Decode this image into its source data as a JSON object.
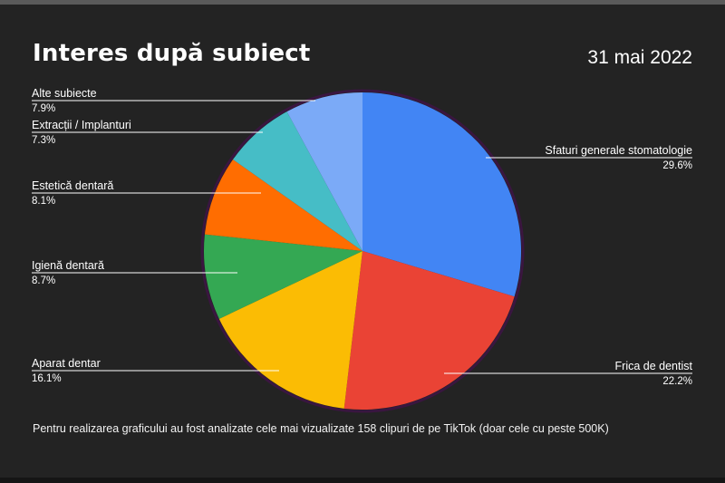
{
  "header": {
    "title": "Interes după subiect",
    "date": "31 mai 2022"
  },
  "footnote": "Pentru realizarea graficului au fost analizate cele mai vizualizate 158 clipuri de pe TikTok (doar cele cu peste 500K)",
  "colors": {
    "background": "#232323",
    "text": "#ffffff"
  },
  "chart_data": {
    "type": "pie",
    "title": "Interes după subiect",
    "start_angle": "12 o'clock",
    "direction": "clockwise",
    "slices": [
      {
        "label": "Sfaturi generale stomatologie",
        "value": 29.6,
        "display": "29.6%",
        "color": "#4285f4"
      },
      {
        "label": "Frica de dentist",
        "value": 22.2,
        "display": "22.2%",
        "color": "#ea4335"
      },
      {
        "label": "Aparat dentar",
        "value": 16.1,
        "display": "16.1%",
        "color": "#fbbc04"
      },
      {
        "label": "Igienă dentară",
        "value": 8.7,
        "display": "8.7%",
        "color": "#34a853"
      },
      {
        "label": "Estetică dentară",
        "value": 8.1,
        "display": "8.1%",
        "color": "#ff6d01"
      },
      {
        "label": "Extracții / Implanturi",
        "value": 7.3,
        "display": "7.3%",
        "color": "#46bdc6"
      },
      {
        "label": "Alte subiecte",
        "value": 7.9,
        "display": "7.9%",
        "color": "#7baaf7"
      }
    ]
  }
}
